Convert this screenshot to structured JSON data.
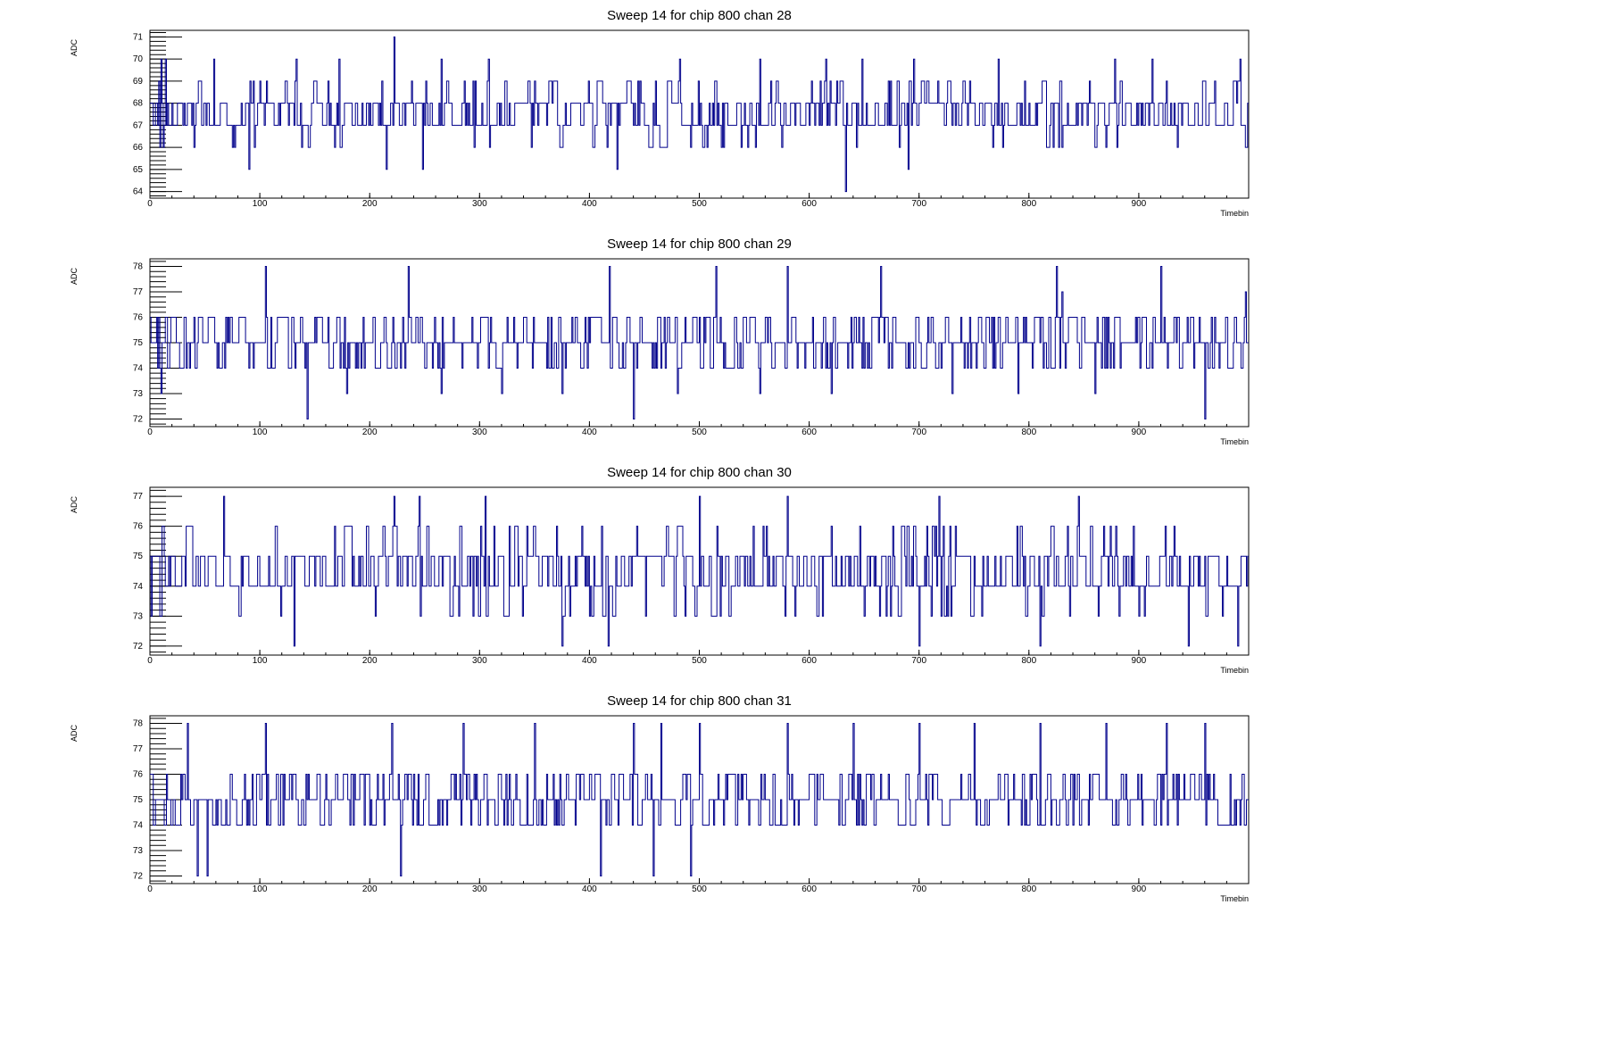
{
  "chart_data": [
    {
      "type": "line",
      "title": "Sweep 14 for chip 800 chan 28",
      "xlabel": "Timebin",
      "ylabel": "ADC",
      "xlim": [
        0,
        1000
      ],
      "ylim": [
        63.7,
        71.3
      ],
      "x_ticks": [
        0,
        100,
        200,
        300,
        400,
        500,
        600,
        700,
        800,
        900
      ],
      "y_ticks": [
        64,
        65,
        66,
        67,
        68,
        69,
        70,
        71
      ],
      "baseline": 67.5,
      "n_points": 1000,
      "series": [
        {
          "values": []
        }
      ],
      "spikes": [
        [
          10,
          70
        ],
        [
          12,
          66
        ],
        [
          14,
          70
        ],
        [
          58,
          70
        ],
        [
          90,
          65
        ],
        [
          133,
          70
        ],
        [
          168,
          66
        ],
        [
          172,
          70
        ],
        [
          215,
          65
        ],
        [
          222,
          71
        ],
        [
          248,
          65
        ],
        [
          265,
          70
        ],
        [
          308,
          70
        ],
        [
          350,
          69
        ],
        [
          425,
          65
        ],
        [
          460,
          69
        ],
        [
          482,
          70
        ],
        [
          520,
          66
        ],
        [
          555,
          70
        ],
        [
          575,
          66
        ],
        [
          615,
          70
        ],
        [
          633,
          64
        ],
        [
          648,
          70
        ],
        [
          690,
          65
        ],
        [
          695,
          70
        ],
        [
          740,
          69
        ],
        [
          772,
          70
        ],
        [
          830,
          66
        ],
        [
          878,
          70
        ],
        [
          912,
          70
        ],
        [
          958,
          69
        ],
        [
          992,
          70
        ],
        [
          998,
          66
        ]
      ],
      "grid": false,
      "color": "#00008b"
    },
    {
      "type": "line",
      "title": "Sweep 14 for chip 800 chan 29",
      "xlabel": "Timebin",
      "ylabel": "ADC",
      "xlim": [
        0,
        1000
      ],
      "ylim": [
        71.7,
        78.3
      ],
      "x_ticks": [
        0,
        100,
        200,
        300,
        400,
        500,
        600,
        700,
        800,
        900
      ],
      "y_ticks": [
        72,
        73,
        74,
        75,
        76,
        77,
        78
      ],
      "baseline": 75,
      "n_points": 1000,
      "series": [
        {
          "values": []
        }
      ],
      "spikes": [
        [
          10,
          73
        ],
        [
          105,
          78
        ],
        [
          143,
          72
        ],
        [
          179,
          73
        ],
        [
          235,
          78
        ],
        [
          265,
          73
        ],
        [
          320,
          73
        ],
        [
          375,
          73
        ],
        [
          418,
          78
        ],
        [
          440,
          72
        ],
        [
          480,
          73
        ],
        [
          515,
          78
        ],
        [
          555,
          73
        ],
        [
          580,
          78
        ],
        [
          620,
          73
        ],
        [
          665,
          78
        ],
        [
          730,
          73
        ],
        [
          790,
          73
        ],
        [
          825,
          78
        ],
        [
          830,
          77
        ],
        [
          860,
          73
        ],
        [
          920,
          78
        ],
        [
          960,
          72
        ],
        [
          997,
          77
        ]
      ],
      "grid": false,
      "color": "#00008b"
    },
    {
      "type": "line",
      "title": "Sweep 14 for chip 800 chan 30",
      "xlabel": "Timebin",
      "ylabel": "ADC",
      "xlim": [
        0,
        1000
      ],
      "ylim": [
        71.7,
        77.3
      ],
      "x_ticks": [
        0,
        100,
        200,
        300,
        400,
        500,
        600,
        700,
        800,
        900
      ],
      "y_ticks": [
        72,
        73,
        74,
        75,
        76,
        77
      ],
      "baseline": 74.5,
      "n_points": 1000,
      "series": [
        {
          "values": []
        }
      ],
      "spikes": [
        [
          10,
          73
        ],
        [
          67,
          77
        ],
        [
          131,
          72
        ],
        [
          222,
          77
        ],
        [
          245,
          77
        ],
        [
          305,
          77
        ],
        [
          375,
          72
        ],
        [
          417,
          72
        ],
        [
          500,
          72
        ],
        [
          500,
          77
        ],
        [
          580,
          77
        ],
        [
          650,
          73
        ],
        [
          670,
          73
        ],
        [
          718,
          77
        ],
        [
          700,
          72
        ],
        [
          810,
          72
        ],
        [
          845,
          77
        ],
        [
          945,
          72
        ],
        [
          990,
          72
        ]
      ],
      "grid": false,
      "color": "#00008b"
    },
    {
      "type": "line",
      "title": "Sweep 14 for chip 800 chan 31",
      "xlabel": "Timebin",
      "ylabel": "ADC",
      "xlim": [
        0,
        1000
      ],
      "ylim": [
        71.7,
        78.3
      ],
      "x_ticks": [
        0,
        100,
        200,
        300,
        400,
        500,
        600,
        700,
        800,
        900
      ],
      "y_ticks": [
        72,
        73,
        74,
        75,
        76,
        77,
        78
      ],
      "baseline": 75,
      "n_points": 1000,
      "series": [
        {
          "values": []
        }
      ],
      "spikes": [
        [
          34,
          78
        ],
        [
          43,
          72
        ],
        [
          52,
          72
        ],
        [
          105,
          78
        ],
        [
          220,
          78
        ],
        [
          228,
          72
        ],
        [
          285,
          78
        ],
        [
          350,
          78
        ],
        [
          410,
          72
        ],
        [
          440,
          78
        ],
        [
          458,
          72
        ],
        [
          465,
          78
        ],
        [
          492,
          72
        ],
        [
          500,
          78
        ],
        [
          580,
          78
        ],
        [
          640,
          78
        ],
        [
          700,
          78
        ],
        [
          750,
          78
        ],
        [
          810,
          78
        ],
        [
          870,
          78
        ],
        [
          925,
          78
        ],
        [
          960,
          78
        ]
      ],
      "grid": false,
      "color": "#00008b"
    }
  ]
}
